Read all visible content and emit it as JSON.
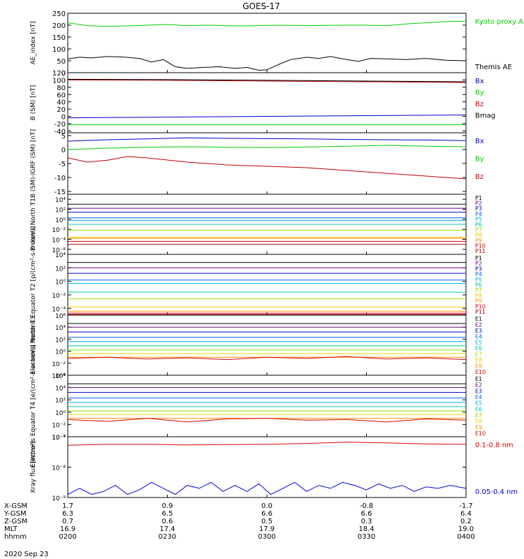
{
  "title": "GOES-17",
  "date": "2020 Sep 23",
  "ephemeris": {
    "row_labels": [
      "X-GSM",
      "Y-GSM",
      "Z-GSM",
      "MLT",
      "hhmm"
    ],
    "columns": [
      [
        "1.7",
        "6.3",
        "0.7",
        "16.9",
        "0200"
      ],
      [
        "0.9",
        "6.5",
        "0.6",
        "17.4",
        "0230"
      ],
      [
        "0.0",
        "6.6",
        "0.5",
        "17.9",
        "0300"
      ],
      [
        "-0.8",
        "6.6",
        "0.3",
        "18.4",
        "0330"
      ],
      [
        "-1.7",
        "6.4",
        "0.2",
        "19.0",
        "0400"
      ]
    ]
  },
  "chart_data": [
    {
      "type": "line",
      "ylabel": "AE_index [nT]",
      "ylim": [
        0,
        250
      ],
      "yticks": [
        "250",
        "200",
        "150",
        "100",
        "50",
        "0"
      ],
      "series": [
        {
          "name": "Kyoto proxy AE",
          "color": "#00d000",
          "x": [
            0,
            0.05,
            0.1,
            0.15,
            0.2,
            0.25,
            0.3,
            0.35,
            0.4,
            0.45,
            0.5,
            0.55,
            0.6,
            0.65,
            0.7,
            0.75,
            0.8,
            0.85,
            0.9,
            0.95,
            1.0
          ],
          "y": [
            210,
            198,
            195,
            197,
            200,
            203,
            198,
            200,
            198,
            197,
            199,
            200,
            198,
            199,
            200,
            200,
            198,
            205,
            210,
            215,
            217
          ]
        },
        {
          "name": "Themis AE",
          "color": "#000000",
          "x": [
            0,
            0.03,
            0.06,
            0.1,
            0.14,
            0.18,
            0.21,
            0.24,
            0.27,
            0.3,
            0.34,
            0.38,
            0.42,
            0.45,
            0.48,
            0.5,
            0.53,
            0.56,
            0.6,
            0.63,
            0.66,
            0.7,
            0.73,
            0.76,
            0.8,
            0.85,
            0.9,
            0.95,
            1.0
          ],
          "y": [
            58,
            65,
            62,
            68,
            66,
            60,
            45,
            55,
            25,
            18,
            22,
            25,
            18,
            22,
            10,
            12,
            35,
            55,
            65,
            60,
            68,
            55,
            48,
            60,
            58,
            55,
            60,
            52,
            50
          ]
        }
      ]
    },
    {
      "type": "line",
      "ylabel": "B (SM) [nT]",
      "ylim": [
        -45,
        120
      ],
      "yticks": [
        "120",
        "100",
        "80",
        "60",
        "40",
        "20",
        "0",
        "-20",
        "-40"
      ],
      "series": [
        {
          "name": "Bx",
          "color": "#0000c0",
          "x": [
            0,
            0.25,
            0.5,
            0.75,
            1.0
          ],
          "y": [
            -4,
            -2,
            0,
            2,
            4
          ]
        },
        {
          "name": "By",
          "color": "#00d000",
          "x": [
            0,
            0.25,
            0.5,
            0.75,
            1.0
          ],
          "y": [
            -23,
            -23,
            -23,
            -23,
            -23
          ]
        },
        {
          "name": "Bz",
          "color": "#c00000",
          "x": [
            0,
            0.25,
            0.5,
            0.75,
            1.0
          ],
          "y": [
            100,
            99,
            97,
            95,
            93
          ]
        },
        {
          "name": "Bmag",
          "color": "#000000",
          "x": [
            0,
            0.25,
            0.5,
            0.75,
            1.0
          ],
          "y": [
            102,
            101,
            99,
            97,
            95
          ]
        }
      ]
    },
    {
      "type": "line",
      "ylabel": "B (SM)-IGRF (SM) [nT]",
      "ylim": [
        -16,
        6
      ],
      "yticks": [
        "5",
        "0",
        "-5",
        "-10",
        "-15"
      ],
      "series": [
        {
          "name": "Bx",
          "color": "#0000c0",
          "x": [
            0,
            0.1,
            0.2,
            0.3,
            0.4,
            0.5,
            0.6,
            0.7,
            0.8,
            0.9,
            1.0
          ],
          "y": [
            3.0,
            3.5,
            3.8,
            4.2,
            4.0,
            3.9,
            3.8,
            3.6,
            3.5,
            3.4,
            3.2
          ]
        },
        {
          "name": "By",
          "color": "#00d000",
          "x": [
            0,
            0.1,
            0.2,
            0.3,
            0.4,
            0.5,
            0.6,
            0.7,
            0.8,
            0.9,
            1.0
          ],
          "y": [
            0.0,
            0.5,
            0.8,
            1.0,
            0.8,
            0.7,
            0.9,
            1.2,
            1.5,
            1.2,
            1.0
          ]
        },
        {
          "name": "Bz",
          "color": "#c00000",
          "x": [
            0,
            0.05,
            0.1,
            0.15,
            0.2,
            0.3,
            0.4,
            0.5,
            0.6,
            0.7,
            0.8,
            0.9,
            1.0
          ],
          "y": [
            -3.0,
            -4.5,
            -3.8,
            -2.5,
            -3.0,
            -4.5,
            -5.5,
            -6.0,
            -6.5,
            -7.5,
            -8.5,
            -9.5,
            -10.5
          ]
        }
      ]
    },
    {
      "type": "line",
      "ylabel": "Protons North T1",
      "scale": "log",
      "ylim_exp": [
        -7,
        5
      ],
      "ytick_exps": [
        4,
        2,
        0,
        -2,
        -4,
        -6
      ],
      "series": [
        {
          "name": "P1",
          "color": "#000000",
          "x": [
            0,
            1
          ],
          "log10y": [
            3.0,
            3.0
          ]
        },
        {
          "name": "P2",
          "color": "#6a0080",
          "x": [
            0,
            1
          ],
          "log10y": [
            2.2,
            2.2
          ]
        },
        {
          "name": "P3",
          "color": "#0000c0",
          "x": [
            0,
            1
          ],
          "log10y": [
            1.4,
            1.4
          ]
        },
        {
          "name": "P4",
          "color": "#0060ff",
          "x": [
            0,
            1
          ],
          "log10y": [
            0.3,
            0.3
          ]
        },
        {
          "name": "P5",
          "color": "#00b0e0",
          "x": [
            0,
            1
          ],
          "log10y": [
            -0.2,
            -0.2
          ]
        },
        {
          "name": "P6",
          "color": "#00c8a0",
          "x": [
            0,
            1
          ],
          "log10y": [
            -1.0,
            -1.0
          ]
        },
        {
          "name": "P7",
          "color": "#90e000",
          "x": [
            0,
            1
          ],
          "log10y": [
            -2.2,
            -2.2
          ]
        },
        {
          "name": "P8",
          "color": "#e8d000",
          "x": [
            0,
            1
          ],
          "log10y": [
            -3.6,
            -3.6
          ]
        },
        {
          "name": "P9",
          "color": "#ff9000",
          "x": [
            0,
            1
          ],
          "log10y": [
            -3.8,
            -3.8
          ]
        },
        {
          "name": "P10",
          "color": "#e00000",
          "x": [
            0,
            1
          ],
          "log10y": [
            -4.4,
            -4.4
          ]
        },
        {
          "name": "P11",
          "color": "#a00000",
          "x": [
            0,
            1
          ],
          "log10y": [
            -5.0,
            -5.0
          ]
        }
      ]
    },
    {
      "type": "line",
      "ylabel": "Protons Equator T2 [p/(cm²-s-sr-keV)]",
      "scale": "log",
      "ylim_exp": [
        -5,
        4
      ],
      "ytick_exps": [
        4,
        2,
        0,
        -2,
        -4
      ],
      "series": [
        {
          "name": "P1",
          "color": "#000000",
          "x": [
            0,
            1
          ],
          "log10y": [
            2.8,
            2.8
          ]
        },
        {
          "name": "P2",
          "color": "#6a0080",
          "x": [
            0,
            1
          ],
          "log10y": [
            2.0,
            2.0
          ]
        },
        {
          "name": "P3",
          "color": "#0000c0",
          "x": [
            0,
            1
          ],
          "log10y": [
            1.2,
            1.2
          ]
        },
        {
          "name": "P4",
          "color": "#0060ff",
          "x": [
            0,
            1
          ],
          "log10y": [
            0.2,
            0.2
          ]
        },
        {
          "name": "P5",
          "color": "#00b0e0",
          "x": [
            0,
            1
          ],
          "log10y": [
            -0.3,
            -0.3
          ]
        },
        {
          "name": "P6",
          "color": "#00c8a0",
          "x": [
            0,
            1
          ],
          "log10y": [
            -1.6,
            -1.6
          ]
        },
        {
          "name": "P7",
          "color": "#90e000",
          "x": [
            0,
            1
          ],
          "log10y": [
            -2.6,
            -2.6
          ]
        },
        {
          "name": "P8",
          "color": "#e8d000",
          "x": [
            0,
            1
          ],
          "log10y": [
            -3.8,
            -3.8
          ]
        },
        {
          "name": "P9",
          "color": "#ff9000",
          "x": [
            0,
            1
          ],
          "log10y": [
            -4.4,
            -4.4
          ]
        },
        {
          "name": "P10",
          "color": "#e00000",
          "x": [
            0,
            1
          ],
          "log10y": [
            -4.7,
            -4.7
          ]
        },
        {
          "name": "P11",
          "color": "#a00000",
          "x": [
            0,
            1
          ],
          "log10y": [
            -4.9,
            -4.9
          ]
        }
      ]
    },
    {
      "type": "line",
      "ylabel": "Electrons North T3",
      "scale": "log",
      "ylim_exp": [
        -4,
        6
      ],
      "ytick_exps": [
        6,
        4,
        2,
        0,
        -2,
        -4
      ],
      "series": [
        {
          "name": "E1",
          "color": "#000000",
          "x": [
            0,
            1
          ],
          "log10y": [
            4.6,
            4.6
          ]
        },
        {
          "name": "E2",
          "color": "#6a0080",
          "x": [
            0,
            1
          ],
          "log10y": [
            4.0,
            4.0
          ]
        },
        {
          "name": "E3",
          "color": "#0000c0",
          "x": [
            0,
            1
          ],
          "log10y": [
            3.2,
            3.2
          ]
        },
        {
          "name": "E4",
          "color": "#0060ff",
          "x": [
            0,
            1
          ],
          "log10y": [
            2.3,
            2.3
          ]
        },
        {
          "name": "E5",
          "color": "#00b0e0",
          "x": [
            0,
            1
          ],
          "log10y": [
            1.6,
            1.6
          ]
        },
        {
          "name": "E6",
          "color": "#00c8a0",
          "x": [
            0,
            1
          ],
          "log10y": [
            0.9,
            0.9
          ]
        },
        {
          "name": "E7",
          "color": "#90e000",
          "x": [
            0,
            1
          ],
          "log10y": [
            0.2,
            0.2
          ]
        },
        {
          "name": "E8",
          "color": "#e8d000",
          "x": [
            0,
            1
          ],
          "log10y": [
            -0.4,
            -0.4
          ]
        },
        {
          "name": "E9",
          "color": "#ff9000",
          "x": [
            0,
            1
          ],
          "log10y": [
            -1.0,
            -1.0
          ]
        },
        {
          "name": "E10",
          "color": "#e00000",
          "x": [
            0,
            0.1,
            0.2,
            0.3,
            0.4,
            0.5,
            0.6,
            0.7,
            0.8,
            0.9,
            1.0
          ],
          "log10y": [
            -1.2,
            -1.0,
            -1.3,
            -1.1,
            -1.4,
            -1.0,
            -1.2,
            -0.9,
            -1.3,
            -1.1,
            -1.4
          ]
        }
      ]
    },
    {
      "type": "line",
      "ylabel": "Electrons Equator T4 [e/(cm²-s-sr-keV)]",
      "scale": "log",
      "ylim_exp": [
        -4,
        6
      ],
      "ytick_exps": [
        6,
        4,
        2,
        0,
        -2,
        -4
      ],
      "series": [
        {
          "name": "E1",
          "color": "#000000",
          "x": [
            0,
            1
          ],
          "log10y": [
            4.6,
            4.6
          ]
        },
        {
          "name": "E2",
          "color": "#6a0080",
          "x": [
            0,
            1
          ],
          "log10y": [
            4.0,
            4.0
          ]
        },
        {
          "name": "E3",
          "color": "#0000c0",
          "x": [
            0,
            1
          ],
          "log10y": [
            3.2,
            3.2
          ]
        },
        {
          "name": "E4",
          "color": "#0060ff",
          "x": [
            0,
            1
          ],
          "log10y": [
            2.3,
            2.3
          ]
        },
        {
          "name": "E5",
          "color": "#00b0e0",
          "x": [
            0,
            1
          ],
          "log10y": [
            1.6,
            1.6
          ]
        },
        {
          "name": "E6",
          "color": "#00c8a0",
          "x": [
            0,
            1
          ],
          "log10y": [
            0.9,
            0.9
          ]
        },
        {
          "name": "E7",
          "color": "#90e000",
          "x": [
            0,
            1
          ],
          "log10y": [
            0.2,
            0.2
          ]
        },
        {
          "name": "E8",
          "color": "#e8d000",
          "x": [
            0,
            1
          ],
          "log10y": [
            -0.4,
            -0.4
          ]
        },
        {
          "name": "E9",
          "color": "#ff9000",
          "x": [
            0,
            1
          ],
          "log10y": [
            -1.0,
            -1.0
          ]
        },
        {
          "name": "E10",
          "color": "#e00000",
          "x": [
            0,
            0.1,
            0.2,
            0.3,
            0.4,
            0.5,
            0.6,
            0.7,
            0.8,
            0.9,
            1.0
          ],
          "log10y": [
            -1.2,
            -1.5,
            -1.0,
            -1.6,
            -1.1,
            -1.0,
            -1.3,
            -1.2,
            -1.6,
            -1.1,
            -1.3
          ]
        }
      ]
    },
    {
      "type": "line",
      "ylabel": "Xray flux [W/m²]",
      "scale": "log",
      "ylim_exp": [
        -9,
        -7
      ],
      "ytick_exps": [
        -7,
        -8,
        -9
      ],
      "series": [
        {
          "name": "0.1-0.8 nm",
          "color": "#e00000",
          "x": [
            0,
            0.1,
            0.2,
            0.3,
            0.4,
            0.5,
            0.6,
            0.7,
            0.8,
            0.9,
            1.0
          ],
          "log10y": [
            -7.28,
            -7.25,
            -7.25,
            -7.27,
            -7.26,
            -7.25,
            -7.22,
            -7.18,
            -7.2,
            -7.24,
            -7.25
          ]
        },
        {
          "name": "0.05-0.4 nm",
          "color": "#0000e0",
          "x": [
            0,
            0.03,
            0.06,
            0.09,
            0.12,
            0.15,
            0.18,
            0.21,
            0.24,
            0.27,
            0.3,
            0.33,
            0.36,
            0.39,
            0.42,
            0.45,
            0.48,
            0.51,
            0.54,
            0.57,
            0.6,
            0.63,
            0.66,
            0.69,
            0.72,
            0.75,
            0.78,
            0.81,
            0.84,
            0.87,
            0.9,
            0.93,
            0.96,
            1.0
          ],
          "log10y": [
            -8.9,
            -8.7,
            -8.9,
            -8.8,
            -8.6,
            -8.9,
            -8.75,
            -8.5,
            -8.7,
            -8.9,
            -8.6,
            -8.7,
            -8.5,
            -8.8,
            -8.6,
            -8.8,
            -8.55,
            -8.9,
            -8.7,
            -8.5,
            -8.8,
            -8.6,
            -8.7,
            -8.5,
            -8.6,
            -8.75,
            -8.55,
            -8.7,
            -8.6,
            -8.8,
            -8.65,
            -8.7,
            -8.6,
            -8.7
          ]
        }
      ]
    }
  ]
}
